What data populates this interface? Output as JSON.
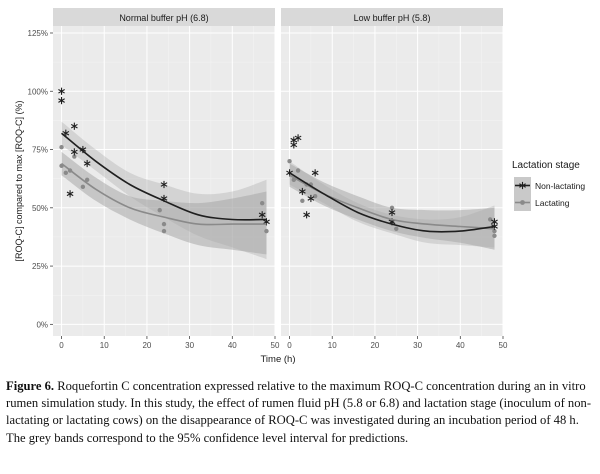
{
  "chart_data": {
    "type": "scatter",
    "ylabel": "[ROQ-C] compared to max [ROQ-C] (%)",
    "xlabel": "Time (h)",
    "x_ticks": [
      "0",
      "10",
      "20",
      "30",
      "40",
      "50"
    ],
    "y_ticks": [
      "0%",
      "25%",
      "50%",
      "75%",
      "100%",
      "125%"
    ],
    "xlim": [
      -2,
      50
    ],
    "ylim": [
      -5,
      128
    ],
    "legend_title": "Lactation stage",
    "legend_position": "right",
    "colors": {
      "non_lactating": "#1f1f1f",
      "lactating": "#8a8a8a",
      "panel_bg": "#ebebeb",
      "band_dark": "#b9b9b9",
      "band_light": "#d3d3d3",
      "strip_bg": "#d9d9d9"
    },
    "series": [
      {
        "key": "non_lactating",
        "name": "Non-lactating",
        "marker": "asterisk"
      },
      {
        "key": "lactating",
        "name": "Lactating",
        "marker": "circle"
      }
    ],
    "panels": [
      {
        "title": "Normal buffer pH (6.8)",
        "fits": {
          "non_lactating": {
            "x": [
              0,
              8,
              16,
              24,
              32,
              40,
              48
            ],
            "y": [
              82,
              70,
              60,
              53,
              47,
              45,
              45
            ],
            "lo": [
              77,
              66,
              55,
              46,
              38,
              33,
              28
            ],
            "hi": [
              87,
              75,
              65,
              60,
              56,
              57,
              62
            ]
          },
          "lactating": {
            "x": [
              0,
              8,
              16,
              24,
              32,
              40,
              48
            ],
            "y": [
              69,
              58,
              50,
              46,
              43,
              43,
              43
            ],
            "lo": [
              64,
              53,
              45,
              39,
              34,
              32,
              30
            ],
            "hi": [
              74,
              63,
              55,
              53,
              52,
              54,
              57
            ]
          }
        },
        "points": {
          "non_lactating": [
            [
              0,
              100
            ],
            [
              0,
              96
            ],
            [
              1,
              82
            ],
            [
              2,
              56
            ],
            [
              3,
              85
            ],
            [
              3,
              74
            ],
            [
              5,
              75
            ],
            [
              6,
              69
            ],
            [
              24,
              60
            ],
            [
              24,
              54
            ],
            [
              47,
              47
            ],
            [
              48,
              44
            ]
          ],
          "lactating": [
            [
              0,
              76
            ],
            [
              0,
              68
            ],
            [
              1,
              65
            ],
            [
              2,
              66
            ],
            [
              3,
              72
            ],
            [
              5,
              59
            ],
            [
              6,
              62
            ],
            [
              23,
              49
            ],
            [
              24,
              43
            ],
            [
              24,
              40
            ],
            [
              47,
              52
            ],
            [
              48,
              40
            ]
          ]
        }
      },
      {
        "title": "Low buffer pH (5.8)",
        "fits": {
          "non_lactating": {
            "x": [
              0,
              8,
              16,
              24,
              32,
              40,
              48
            ],
            "y": [
              65,
              56,
              48,
              43,
              40,
              40,
              42
            ],
            "lo": [
              60,
              52,
              44,
              39,
              35,
              34,
              33
            ],
            "hi": [
              70,
              60,
              52,
              47,
              45,
              46,
              51
            ]
          },
          "lactating": {
            "x": [
              0,
              8,
              16,
              24,
              32,
              40,
              48
            ],
            "y": [
              64,
              56,
              50,
              45,
              43,
              42,
              41
            ],
            "lo": [
              59,
              51,
              45,
              40,
              37,
              35,
              32
            ],
            "hi": [
              69,
              61,
              55,
              50,
              49,
              49,
              50
            ]
          }
        },
        "points": {
          "non_lactating": [
            [
              0,
              65
            ],
            [
              1,
              79
            ],
            [
              1,
              77
            ],
            [
              2,
              80
            ],
            [
              3,
              57
            ],
            [
              4,
              47
            ],
            [
              5,
              54
            ],
            [
              6,
              65
            ],
            [
              24,
              48
            ],
            [
              24,
              44
            ],
            [
              48,
              44
            ],
            [
              48,
              42
            ]
          ],
          "lactating": [
            [
              0,
              70
            ],
            [
              1,
              62
            ],
            [
              2,
              66
            ],
            [
              3,
              53
            ],
            [
              4,
              60
            ],
            [
              5,
              60
            ],
            [
              6,
              55
            ],
            [
              24,
              50
            ],
            [
              25,
              41
            ],
            [
              48,
              38
            ],
            [
              48,
              40
            ],
            [
              47,
              45
            ]
          ]
        }
      }
    ]
  },
  "caption": {
    "label": "Figure 6.",
    "text": " Roquefortin C concentration expressed relative to the maximum ROQ-C concentration during an in vitro rumen simulation study. In this study, the effect of rumen fluid pH (5.8 or 6.8) and lactation stage (inoculum of non-lactating or lactating cows) on the disappearance of ROQ-C was investigated during an incubation period of 48 h. The grey bands correspond to the 95% confidence level interval for predictions."
  }
}
